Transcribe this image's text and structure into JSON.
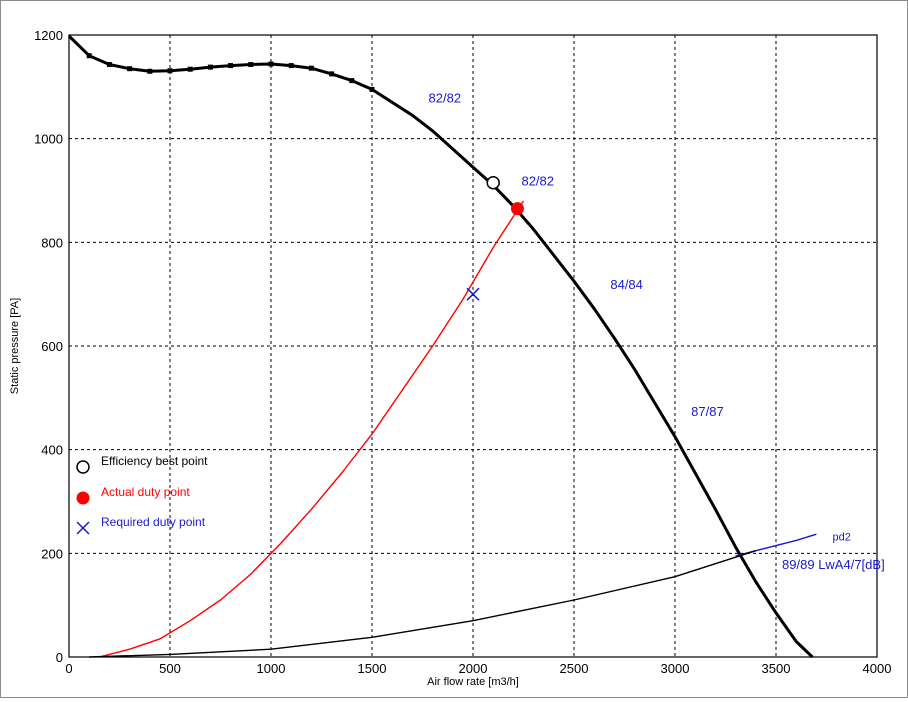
{
  "chart_data": {
    "type": "line",
    "xlabel": "Air flow rate [m3/h]",
    "ylabel": "Static pressure [PA]",
    "xlim": [
      0,
      4000
    ],
    "ylim": [
      0,
      1200
    ],
    "xticks": [
      "0",
      "500",
      "1000",
      "1500",
      "2000",
      "2500",
      "3000",
      "3500",
      "4000"
    ],
    "yticks": [
      "0",
      "200",
      "400",
      "600",
      "800",
      "1000",
      "1200"
    ],
    "grid": true,
    "legend_position": "left",
    "legend": [
      {
        "label": "Efficiency best point",
        "color": "#000000",
        "marker": "open-circle"
      },
      {
        "label": "Actual duty point",
        "color": "#ff0000",
        "marker": "filled-circle"
      },
      {
        "label": "Required duty point",
        "color": "#1a1acc",
        "marker": "cross"
      }
    ],
    "series": [
      {
        "color": "#000000",
        "style": "thick-line-with-square-markers",
        "x": [
          0,
          100,
          200,
          300,
          400,
          500,
          600,
          700,
          800,
          900,
          1000,
          1100,
          1200,
          1300,
          1400,
          1500,
          1600,
          1700,
          1800,
          1900,
          2000,
          2100,
          2200,
          2300,
          2400,
          2500,
          2600,
          2700,
          2800,
          2900,
          3000,
          3100,
          3200,
          3300,
          3400,
          3500,
          3600,
          3680
        ],
        "y": [
          1198,
          1160,
          1143,
          1135,
          1130,
          1131,
          1134,
          1138,
          1141,
          1143,
          1144,
          1141,
          1136,
          1125,
          1112,
          1095,
          1070,
          1045,
          1015,
          980,
          945,
          910,
          870,
          825,
          775,
          725,
          672,
          615,
          555,
          490,
          425,
          355,
          285,
          212,
          145,
          85,
          30,
          0
        ]
      },
      {
        "color": "#ff0000",
        "style": "thin-line",
        "x": [
          150,
          300,
          450,
          600,
          750,
          900,
          1050,
          1200,
          1350,
          1500,
          1650,
          1800,
          1950,
          2100,
          2250
        ],
        "y": [
          0,
          15,
          35,
          70,
          110,
          160,
          220,
          285,
          355,
          430,
          515,
          600,
          690,
          790,
          880
        ]
      },
      {
        "name": "pd2",
        "color": "#1a1acc",
        "style": "thin-line",
        "x": [
          3300,
          3400,
          3500,
          3600,
          3700
        ],
        "y": [
          195,
          205,
          215,
          225,
          237
        ]
      },
      {
        "color": "#000000",
        "style": "thin-line",
        "x": [
          100,
          500,
          1000,
          1500,
          2000,
          2500,
          3000,
          3400
        ],
        "y": [
          0,
          5,
          15,
          38,
          70,
          110,
          155,
          205
        ]
      }
    ],
    "points": [
      {
        "label": "Efficiency best point",
        "x": 2100,
        "y": 915,
        "marker": "open-circle"
      },
      {
        "label": "Actual duty point",
        "x": 2220,
        "y": 865,
        "marker": "filled-circle"
      },
      {
        "label": "Required duty point",
        "x": 2000,
        "y": 700,
        "marker": "cross"
      }
    ],
    "annotations": [
      {
        "text": "82/82",
        "x": 1780,
        "y": 1070,
        "color": "#1a1acc"
      },
      {
        "text": "82/82",
        "x": 2240,
        "y": 910,
        "color": "#1a1acc"
      },
      {
        "text": "84/84",
        "x": 2680,
        "y": 710,
        "color": "#1a1acc"
      },
      {
        "text": "87/87",
        "x": 3080,
        "y": 465,
        "color": "#1a1acc"
      },
      {
        "text": "pd2",
        "x": 3780,
        "y": 225,
        "color": "#000000"
      },
      {
        "text": "89/89 LwA4/7[dB]",
        "x": 3530,
        "y": 170,
        "color": "#1a1acc"
      }
    ]
  }
}
